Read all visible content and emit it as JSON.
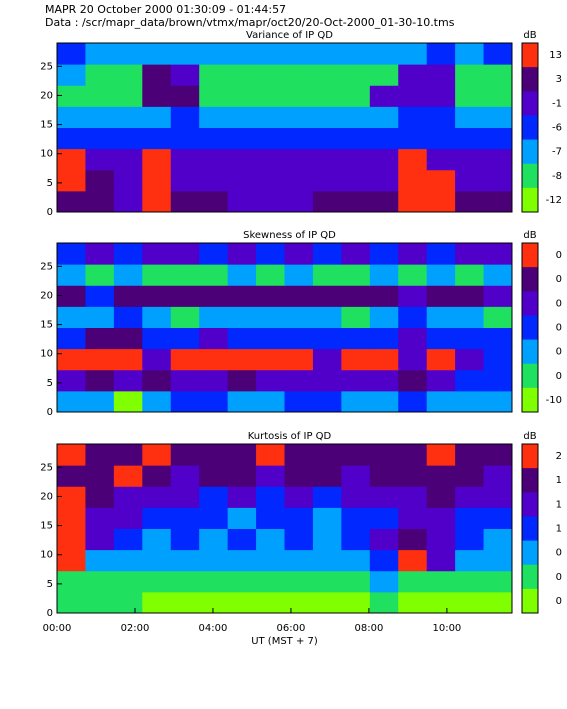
{
  "header": {
    "line1": "MAPR   20 October 2000  01:30:09 - 01:44:57",
    "line2": "Data : /scr/mapr_data/brown/vtmx/mapr/oct20/20-Oct-2000_01-30-10.tms"
  },
  "chart_data": [
    {
      "type": "heatmap",
      "title": "Variance of IP QD",
      "xlim": [
        0,
        11.67
      ],
      "ylim": [
        0,
        29
      ],
      "yticks": [
        0,
        5,
        10,
        15,
        20,
        25
      ],
      "colorbar": {
        "label": "dB",
        "ticks": [
          13,
          3,
          -1,
          -6,
          -7,
          -8,
          -12
        ],
        "colors": [
          "#ff3010",
          "#4b0078",
          "#5000c8",
          "#0028ff",
          "#00a0ff",
          "#20e060",
          "#80ff00"
        ]
      },
      "z": [
        [
          3,
          3,
          -1,
          13,
          3,
          3,
          -1,
          -1,
          -1,
          3,
          3,
          3,
          13,
          13,
          3,
          3
        ],
        [
          13,
          3,
          -1,
          13,
          -1,
          -1,
          -1,
          -1,
          -1,
          -1,
          -1,
          -1,
          13,
          13,
          -1,
          -1
        ],
        [
          13,
          -1,
          -1,
          13,
          -1,
          -1,
          -1,
          -1,
          -1,
          -1,
          -1,
          -1,
          13,
          -1,
          -1,
          -1
        ],
        [
          -6,
          -6,
          -6,
          -6,
          -6,
          -6,
          -6,
          -6,
          -6,
          -6,
          -6,
          -6,
          -6,
          -6,
          -6,
          -6
        ],
        [
          -7,
          -7,
          -7,
          -7,
          -6,
          -7,
          -7,
          -7,
          -7,
          -7,
          -7,
          -7,
          -6,
          -6,
          -7,
          -7
        ],
        [
          -8,
          -8,
          -8,
          3,
          3,
          -8,
          -8,
          -8,
          -8,
          -8,
          -8,
          -1,
          -1,
          -1,
          -8,
          -8
        ],
        [
          -7,
          -8,
          -8,
          3,
          -1,
          -8,
          -8,
          -8,
          -8,
          -8,
          -8,
          -8,
          -1,
          -1,
          -8,
          -8
        ],
        [
          -6,
          -7,
          -7,
          -7,
          -7,
          -7,
          -7,
          -7,
          -7,
          -7,
          -7,
          -7,
          -7,
          -6,
          -7,
          -6
        ]
      ]
    },
    {
      "type": "heatmap",
      "title": "Skewness of IP QD",
      "xlim": [
        0,
        11.67
      ],
      "ylim": [
        0,
        29
      ],
      "yticks": [
        0,
        5,
        10,
        15,
        20,
        25
      ],
      "colorbar": {
        "label": "dB",
        "ticks": [
          {
            "value": 0.5,
            "label": "0"
          },
          {
            "value": 0.4,
            "label": "0"
          },
          {
            "value": 0.3,
            "label": "0"
          },
          {
            "value": 0.2,
            "label": "0"
          },
          {
            "value": 0.1,
            "label": "0"
          },
          0,
          -10
        ],
        "colors": [
          "#ff3010",
          "#4b0078",
          "#5000c8",
          "#0028ff",
          "#00a0ff",
          "#20e060",
          "#80ff00"
        ]
      },
      "z": [
        [
          0.1,
          0.1,
          -10,
          0.1,
          0.2,
          0.2,
          0.1,
          0.1,
          0.2,
          0.2,
          0.1,
          0.1,
          0.2,
          0.1,
          0.1,
          0.1
        ],
        [
          0.3,
          0.4,
          0.3,
          0.4,
          0.3,
          0.3,
          0.4,
          0.3,
          0.3,
          0.3,
          0.3,
          0.3,
          0.4,
          0.3,
          0.2,
          0.2
        ],
        [
          0.5,
          0.5,
          0.5,
          0.3,
          0.5,
          0.5,
          0.5,
          0.5,
          0.5,
          0.3,
          0.5,
          0.5,
          0.3,
          0.5,
          0.3,
          0.2
        ],
        [
          0.2,
          0.4,
          0.4,
          0.2,
          0.2,
          0.3,
          0.2,
          0.2,
          0.2,
          0.2,
          0.2,
          0.2,
          0.3,
          0.2,
          0.2,
          0.2
        ],
        [
          0.1,
          0.1,
          0.2,
          0.1,
          0,
          0.1,
          0.1,
          0.1,
          0.1,
          0.1,
          0,
          0.1,
          0.2,
          0.1,
          0.1,
          0
        ],
        [
          0.4,
          0.2,
          0.4,
          0.4,
          0.4,
          0.4,
          0.4,
          0.4,
          0.4,
          0.4,
          0.4,
          0.4,
          0.3,
          0.4,
          0.4,
          0.3
        ],
        [
          0.1,
          0,
          0.1,
          0,
          0,
          0,
          0.1,
          0,
          0.1,
          0,
          0,
          0.1,
          0,
          0.1,
          0,
          0.1
        ],
        [
          0.2,
          0.3,
          0.2,
          0.3,
          0.3,
          0.2,
          0.3,
          0.2,
          0.3,
          0.2,
          0.3,
          0.2,
          0.3,
          0.2,
          0.3,
          0.3
        ]
      ]
    },
    {
      "type": "heatmap",
      "title": "Kurtosis of IP QD",
      "xlim": [
        0,
        11.67
      ],
      "ylim": [
        0,
        29
      ],
      "yticks": [
        0,
        5,
        10,
        15,
        20,
        25
      ],
      "xticks": [
        {
          "value": 0,
          "label": "00:00"
        },
        {
          "value": 2,
          "label": "02:00"
        },
        {
          "value": 4,
          "label": "04:00"
        },
        {
          "value": 6,
          "label": "06:00"
        },
        {
          "value": 8,
          "label": "08:00"
        },
        {
          "value": 10,
          "label": "10:00"
        }
      ],
      "xlabel": "UT (MST + 7)",
      "colorbar": {
        "label": "dB",
        "ticks": [
          2,
          {
            "value": 1.4,
            "label": "1"
          },
          {
            "value": 1.2,
            "label": "1"
          },
          1,
          {
            "value": 0.4,
            "label": "0"
          },
          {
            "value": 0.2,
            "label": "0"
          },
          0
        ],
        "colors": [
          "#ff3010",
          "#4b0078",
          "#5000c8",
          "#0028ff",
          "#00a0ff",
          "#20e060",
          "#80ff00"
        ]
      },
      "z": [
        [
          0.2,
          0.2,
          0.2,
          0,
          0,
          0,
          0,
          0,
          0,
          0,
          0,
          0.2,
          0,
          0,
          0,
          0
        ],
        [
          0.2,
          0.2,
          0.2,
          0.2,
          0.2,
          0.2,
          0.2,
          0.2,
          0.2,
          0.2,
          0.2,
          0.4,
          0.2,
          0.2,
          0.2,
          0.2
        ],
        [
          2,
          0.4,
          0.4,
          0.4,
          0.4,
          0.4,
          0.4,
          0.4,
          0.4,
          0.4,
          0.4,
          1,
          2,
          1.2,
          0.4,
          0.4
        ],
        [
          2,
          1.2,
          1,
          0.4,
          1,
          0.4,
          1,
          0.4,
          1,
          0.4,
          1,
          1.2,
          1.4,
          1.2,
          1,
          0.4
        ],
        [
          2,
          1.2,
          1.2,
          1,
          1,
          1,
          0.4,
          1,
          1,
          0.4,
          1,
          1,
          1.2,
          1.2,
          1,
          1
        ],
        [
          2,
          1.4,
          1.2,
          1.2,
          1.2,
          1,
          1.2,
          1,
          1.2,
          1,
          1.2,
          1.2,
          1.2,
          1.4,
          1.2,
          1.2
        ],
        [
          1.4,
          1.4,
          2,
          1.4,
          1.2,
          1.4,
          1.4,
          1.2,
          1.4,
          1.4,
          1.2,
          1.4,
          1.4,
          1.4,
          1.4,
          1.2
        ],
        [
          2,
          1.4,
          1.4,
          2,
          1.4,
          1.4,
          1.4,
          2,
          1.4,
          1.4,
          1.4,
          1.4,
          1.4,
          2,
          1.4,
          1.4
        ]
      ]
    }
  ]
}
